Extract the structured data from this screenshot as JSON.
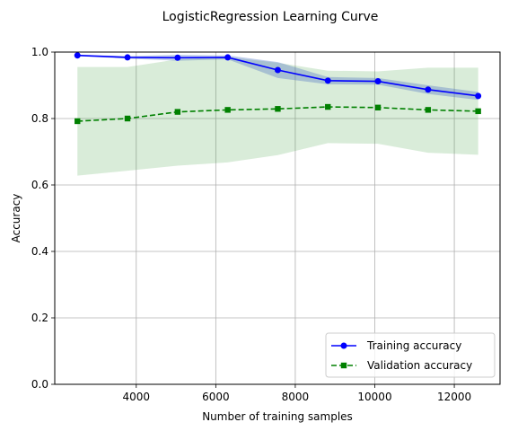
{
  "chart_data": {
    "type": "line",
    "title": "LogisticRegression Learning Curve",
    "xlabel": "Number of training samples",
    "ylabel": "Accuracy",
    "xlim": [
      1950,
      13150
    ],
    "ylim": [
      0.0,
      1.0
    ],
    "xticks": [
      4000,
      6000,
      8000,
      10000,
      12000
    ],
    "yticks": [
      0.0,
      0.2,
      0.4,
      0.6,
      0.8,
      1.0
    ],
    "xtick_labels": [
      "4000",
      "6000",
      "8000",
      "10000",
      "12000"
    ],
    "ytick_labels": [
      "0.0",
      "0.2",
      "0.4",
      "0.6",
      "0.8",
      "1.0"
    ],
    "grid": true,
    "legend_position": "lower-right",
    "x": [
      2520,
      3780,
      5040,
      6300,
      7560,
      8820,
      10080,
      11340,
      12600
    ],
    "series": [
      {
        "name": "Training accuracy",
        "color": "#0000ff",
        "band_color": "#4a6fc2",
        "marker": "circle",
        "linestyle": "solid",
        "values": [
          0.99,
          0.984,
          0.983,
          0.984,
          0.946,
          0.914,
          0.912,
          0.887,
          0.868
        ],
        "upper": [
          0.992,
          0.988,
          0.992,
          0.99,
          0.97,
          0.925,
          0.922,
          0.9,
          0.88
        ],
        "lower": [
          0.988,
          0.98,
          0.974,
          0.978,
          0.922,
          0.903,
          0.902,
          0.874,
          0.856
        ]
      },
      {
        "name": "Validation accuracy",
        "color": "#008000",
        "band_color": "#3f9f3f",
        "marker": "square",
        "linestyle": "dashed",
        "values": [
          0.792,
          0.8,
          0.82,
          0.826,
          0.829,
          0.835,
          0.833,
          0.826,
          0.822
        ],
        "upper": [
          0.955,
          0.955,
          0.978,
          0.985,
          0.968,
          0.944,
          0.942,
          0.953,
          0.953
        ],
        "lower": [
          0.628,
          0.643,
          0.658,
          0.668,
          0.69,
          0.726,
          0.724,
          0.697,
          0.691
        ]
      }
    ]
  }
}
